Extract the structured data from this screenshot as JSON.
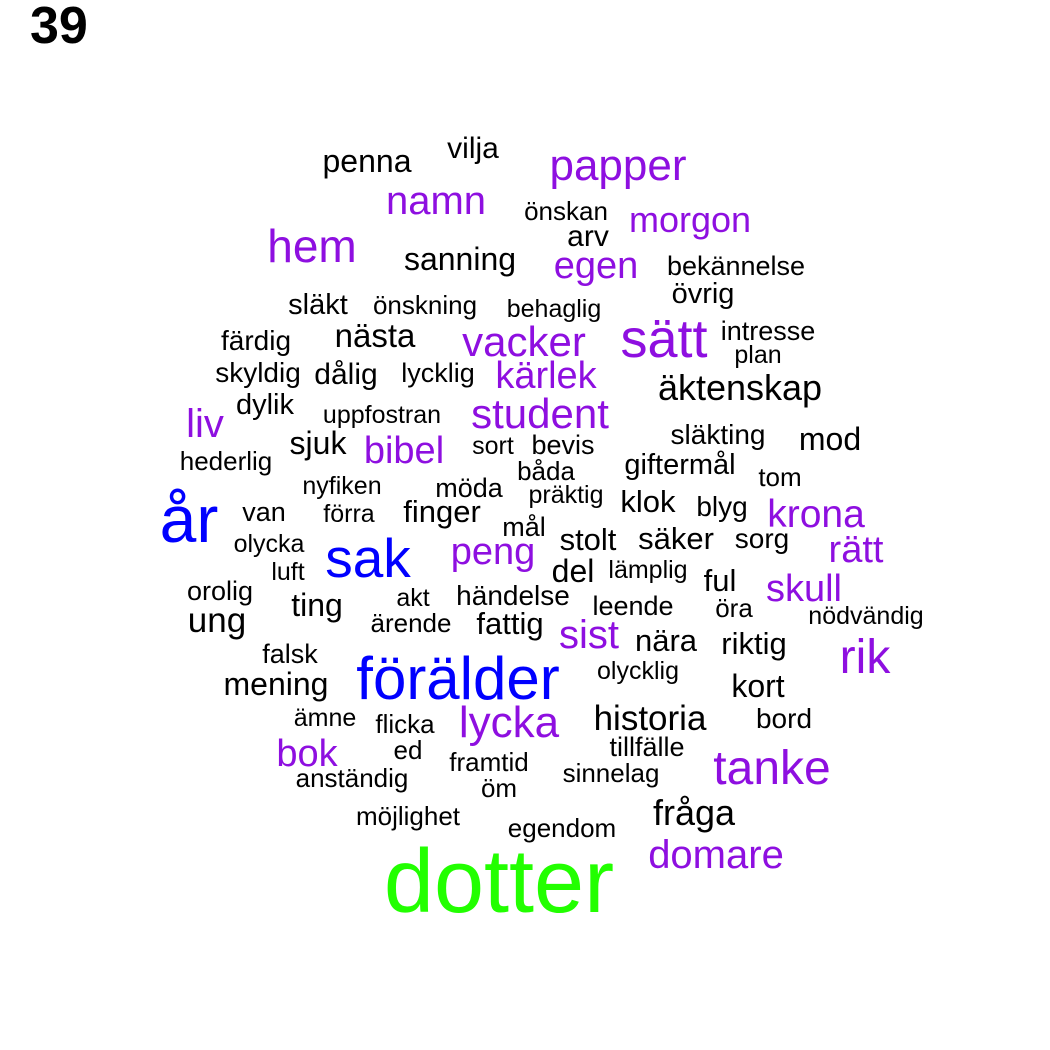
{
  "label": "39",
  "colors": {
    "green": "#22ff00",
    "blue": "#0000ff",
    "purple": "#8e0fe0",
    "black": "#000000"
  },
  "words": [
    {
      "text": "vilja",
      "color": "black"
    },
    {
      "text": "penna",
      "color": "black"
    },
    {
      "text": "papper",
      "color": "purple"
    },
    {
      "text": "namn",
      "color": "purple"
    },
    {
      "text": "önskan",
      "color": "black"
    },
    {
      "text": "morgon",
      "color": "purple"
    },
    {
      "text": "arv",
      "color": "black"
    },
    {
      "text": "hem",
      "color": "purple"
    },
    {
      "text": "sanning",
      "color": "black"
    },
    {
      "text": "egen",
      "color": "purple"
    },
    {
      "text": "bekännelse",
      "color": "black"
    },
    {
      "text": "övrig",
      "color": "black"
    },
    {
      "text": "släkt",
      "color": "black"
    },
    {
      "text": "önskning",
      "color": "black"
    },
    {
      "text": "behaglig",
      "color": "black"
    },
    {
      "text": "sätt",
      "color": "purple"
    },
    {
      "text": "intresse",
      "color": "black"
    },
    {
      "text": "färdig",
      "color": "black"
    },
    {
      "text": "nästa",
      "color": "black"
    },
    {
      "text": "vacker",
      "color": "purple"
    },
    {
      "text": "plan",
      "color": "black"
    },
    {
      "text": "skyldig",
      "color": "black"
    },
    {
      "text": "dålig",
      "color": "black"
    },
    {
      "text": "lycklig",
      "color": "black"
    },
    {
      "text": "kärlek",
      "color": "purple"
    },
    {
      "text": "äktenskap",
      "color": "black"
    },
    {
      "text": "dylik",
      "color": "black"
    },
    {
      "text": "uppfostran",
      "color": "black"
    },
    {
      "text": "student",
      "color": "purple"
    },
    {
      "text": "liv",
      "color": "purple"
    },
    {
      "text": "släkting",
      "color": "black"
    },
    {
      "text": "mod",
      "color": "black"
    },
    {
      "text": "sjuk",
      "color": "black"
    },
    {
      "text": "bibel",
      "color": "purple"
    },
    {
      "text": "sort",
      "color": "black"
    },
    {
      "text": "bevis",
      "color": "black"
    },
    {
      "text": "hederlig",
      "color": "black"
    },
    {
      "text": "giftermål",
      "color": "black"
    },
    {
      "text": "båda",
      "color": "black"
    },
    {
      "text": "tom",
      "color": "black"
    },
    {
      "text": "nyfiken",
      "color": "black"
    },
    {
      "text": "möda",
      "color": "black"
    },
    {
      "text": "präktig",
      "color": "black"
    },
    {
      "text": "klok",
      "color": "black"
    },
    {
      "text": "blyg",
      "color": "black"
    },
    {
      "text": "år",
      "color": "blue"
    },
    {
      "text": "van",
      "color": "black"
    },
    {
      "text": "förra",
      "color": "black"
    },
    {
      "text": "finger",
      "color": "black"
    },
    {
      "text": "krona",
      "color": "purple"
    },
    {
      "text": "mål",
      "color": "black"
    },
    {
      "text": "olycka",
      "color": "black"
    },
    {
      "text": "sak",
      "color": "blue"
    },
    {
      "text": "peng",
      "color": "purple"
    },
    {
      "text": "stolt",
      "color": "black"
    },
    {
      "text": "säker",
      "color": "black"
    },
    {
      "text": "sorg",
      "color": "black"
    },
    {
      "text": "rätt",
      "color": "purple"
    },
    {
      "text": "luft",
      "color": "black"
    },
    {
      "text": "del",
      "color": "black"
    },
    {
      "text": "lämplig",
      "color": "black"
    },
    {
      "text": "ful",
      "color": "black"
    },
    {
      "text": "skull",
      "color": "purple"
    },
    {
      "text": "orolig",
      "color": "black"
    },
    {
      "text": "akt",
      "color": "black"
    },
    {
      "text": "händelse",
      "color": "black"
    },
    {
      "text": "ting",
      "color": "black"
    },
    {
      "text": "leende",
      "color": "black"
    },
    {
      "text": "öra",
      "color": "black"
    },
    {
      "text": "nödvändig",
      "color": "black"
    },
    {
      "text": "ung",
      "color": "black"
    },
    {
      "text": "ärende",
      "color": "black"
    },
    {
      "text": "fattig",
      "color": "black"
    },
    {
      "text": "sist",
      "color": "purple"
    },
    {
      "text": "nära",
      "color": "black"
    },
    {
      "text": "riktig",
      "color": "black"
    },
    {
      "text": "falsk",
      "color": "black"
    },
    {
      "text": "rik",
      "color": "purple"
    },
    {
      "text": "förälder",
      "color": "blue"
    },
    {
      "text": "olycklig",
      "color": "black"
    },
    {
      "text": "mening",
      "color": "black"
    },
    {
      "text": "kort",
      "color": "black"
    },
    {
      "text": "ämne",
      "color": "black"
    },
    {
      "text": "flicka",
      "color": "black"
    },
    {
      "text": "lycka",
      "color": "purple"
    },
    {
      "text": "historia",
      "color": "black"
    },
    {
      "text": "bord",
      "color": "black"
    },
    {
      "text": "bok",
      "color": "purple"
    },
    {
      "text": "ed",
      "color": "black"
    },
    {
      "text": "tillfälle",
      "color": "black"
    },
    {
      "text": "framtid",
      "color": "black"
    },
    {
      "text": "sinnelag",
      "color": "black"
    },
    {
      "text": "tanke",
      "color": "purple"
    },
    {
      "text": "anständig",
      "color": "black"
    },
    {
      "text": "öm",
      "color": "black"
    },
    {
      "text": "fråga",
      "color": "black"
    },
    {
      "text": "möjlighet",
      "color": "black"
    },
    {
      "text": "egendom",
      "color": "black"
    },
    {
      "text": "domare",
      "color": "purple"
    },
    {
      "text": "dotter",
      "color": "green"
    }
  ]
}
